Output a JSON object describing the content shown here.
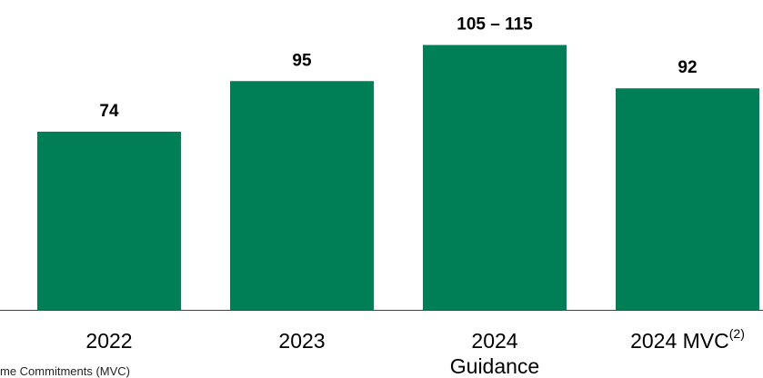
{
  "chart_data": {
    "type": "bar",
    "categories": [
      {
        "label": "2022",
        "sublabel": "",
        "superscript": ""
      },
      {
        "label": "2023",
        "sublabel": "",
        "superscript": ""
      },
      {
        "label": "2024",
        "sublabel": "Guidance",
        "superscript": ""
      },
      {
        "label": "2024 MVC",
        "sublabel": "",
        "superscript": "(2)"
      }
    ],
    "values": [
      74,
      95,
      110,
      92
    ],
    "data_labels": [
      "74",
      "95",
      "105 – 115",
      "92"
    ],
    "ylim": [
      0,
      125
    ],
    "title": "",
    "xlabel": "",
    "ylabel": "",
    "grid": false,
    "legend": "none",
    "colors": {
      "bar": "#007f57",
      "axis": "#444444",
      "text": "#000000"
    }
  },
  "footnote": "me Commitments (MVC)"
}
